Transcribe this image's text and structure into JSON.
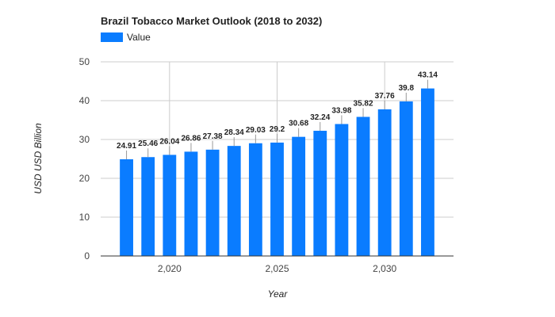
{
  "chart_data": {
    "type": "bar",
    "title": "Brazil Tobacco Market Outlook (2018 to 2032)",
    "xlabel": "Year",
    "ylabel": "USD USD Billion",
    "legend": {
      "entries": [
        "Value"
      ],
      "placement": "top-left"
    },
    "colors": {
      "bar": "#0a7cff",
      "grid": "#cccccc"
    },
    "grid": true,
    "x": [
      2018,
      2019,
      2020,
      2021,
      2022,
      2023,
      2024,
      2025,
      2026,
      2027,
      2028,
      2029,
      2030,
      2031,
      2032
    ],
    "values": [
      24.91,
      25.46,
      26.04,
      26.86,
      27.38,
      28.34,
      29.03,
      29.2,
      30.68,
      32.24,
      33.98,
      35.82,
      37.76,
      39.8,
      43.14
    ],
    "data_labels": [
      "24.91",
      "25.46",
      "26.04",
      "26.86",
      "27.38",
      "28.34",
      "29.03",
      "29.2",
      "30.68",
      "32.24",
      "33.98",
      "35.82",
      "37.76",
      "39.8",
      "43.14"
    ],
    "xlim": [
      2016.8,
      2033.2
    ],
    "ylim": [
      0,
      50
    ],
    "x_ticks": [
      2020,
      2025,
      2030
    ],
    "x_tick_labels": [
      "2,020",
      "2,025",
      "2,030"
    ],
    "y_ticks": [
      0,
      10,
      20,
      30,
      40,
      50
    ],
    "y_tick_labels": [
      "0",
      "10",
      "20",
      "30",
      "40",
      "50"
    ]
  }
}
